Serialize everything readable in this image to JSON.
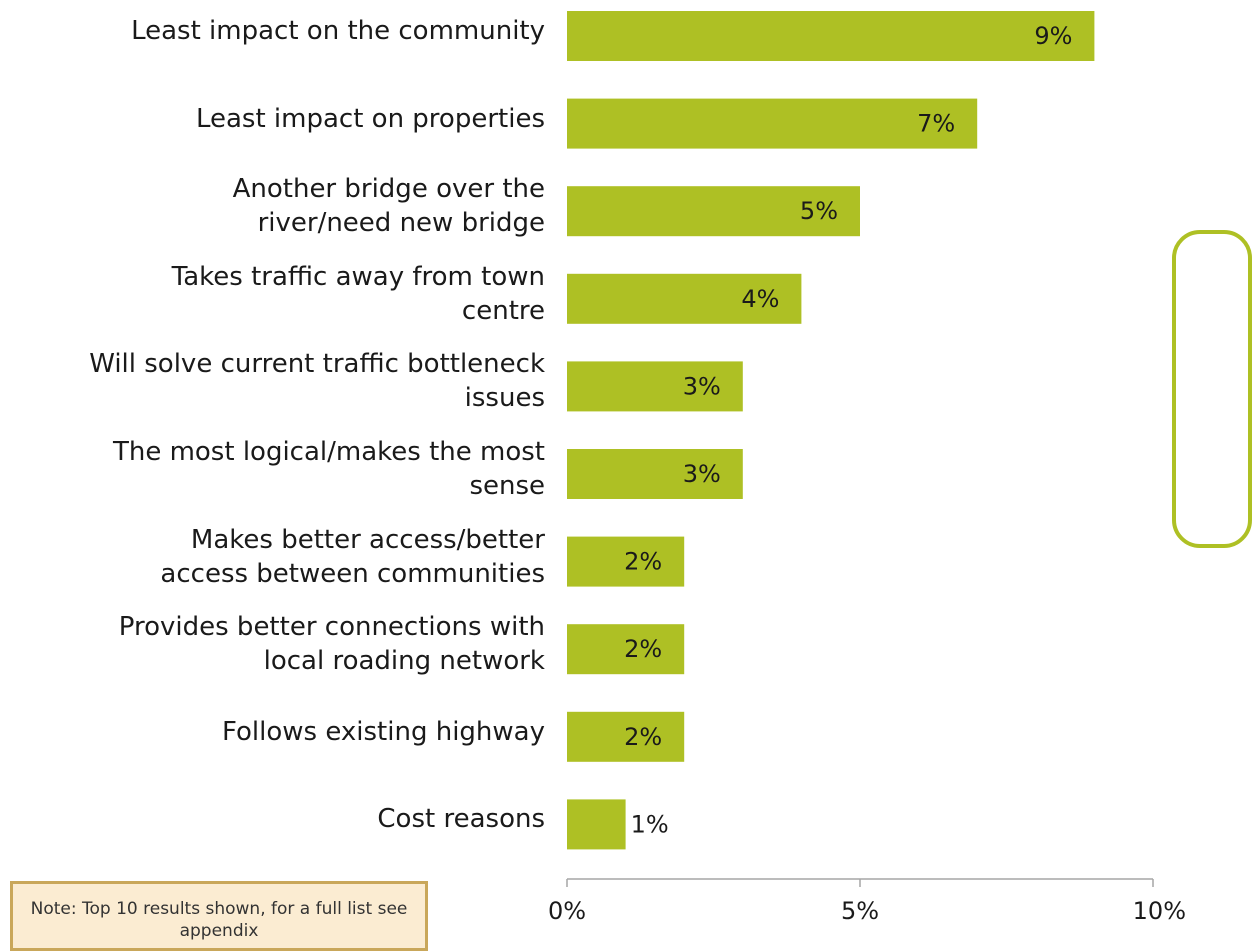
{
  "chart_data": {
    "type": "bar",
    "orientation": "horizontal",
    "categories": [
      "Least impact on the community",
      "Least impact on properties",
      "Another bridge over the river/need new bridge",
      "Takes traffic away from town centre",
      "Will solve current traffic bottleneck issues",
      "The most logical/makes the most sense",
      "Makes better access/better access between communities",
      "Provides better connections with local roading network",
      "Follows existing highway",
      "Cost reasons"
    ],
    "category_lines": [
      [
        "Least impact on the community"
      ],
      [
        "Least impact on properties"
      ],
      [
        "Another bridge over the",
        "river/need new bridge"
      ],
      [
        "Takes traffic away from town",
        "centre"
      ],
      [
        "Will solve current traffic bottleneck",
        "issues"
      ],
      [
        "The most logical/makes the most",
        "sense"
      ],
      [
        "Makes better access/better",
        "access between communities"
      ],
      [
        "Provides better connections with",
        "local roading network"
      ],
      [
        "Follows existing highway"
      ],
      [
        "Cost reasons"
      ]
    ],
    "values": [
      9,
      7,
      5,
      4,
      3,
      3,
      2,
      2,
      2,
      1
    ],
    "data_labels": [
      "9%",
      "7%",
      "5%",
      "4%",
      "3%",
      "3%",
      "2%",
      "2%",
      "2%",
      "1%"
    ],
    "xlim": [
      0,
      10
    ],
    "xticks": [
      0,
      5,
      10
    ],
    "xtick_labels": [
      "0%",
      "5%",
      "10%"
    ],
    "bar_color": "#aec024",
    "grid": false,
    "legend": "none"
  },
  "note": {
    "text": "Note: Top 10 results shown, for a full list see appendix"
  },
  "colors": {
    "callout_border": "#aec024",
    "note_background": "#fbecd2",
    "note_border": "#c9a75a"
  }
}
